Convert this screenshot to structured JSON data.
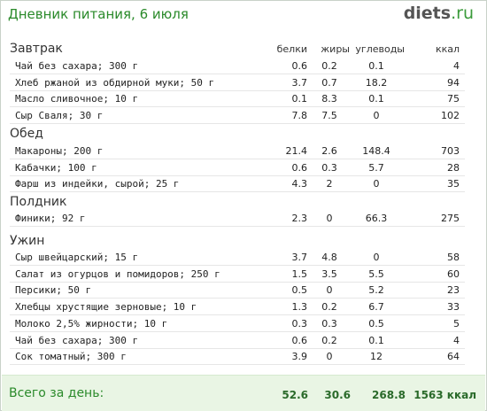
{
  "title": "Дневник питания, 6 июля",
  "logo": {
    "name": "diets",
    "tld": ".ru"
  },
  "columns": [
    "белки",
    "жиры",
    "углеводы",
    "ккал"
  ],
  "sections": [
    {
      "name": "Завтрак",
      "items": [
        [
          "Чай без сахара; 300 г",
          "0.6",
          "0.2",
          "0.1",
          "4"
        ],
        [
          "Хлеб ржаной из обдирной муки; 50 г",
          "3.7",
          "0.7",
          "18.2",
          "94"
        ],
        [
          "Масло сливочное; 10 г",
          "0.1",
          "8.3",
          "0.1",
          "75"
        ],
        [
          "Сыр Сваля; 30 г",
          "7.8",
          "7.5",
          "0",
          "102"
        ]
      ]
    },
    {
      "name": "Обед",
      "items": [
        [
          "Макароны; 200 г",
          "21.4",
          "2.6",
          "148.4",
          "703"
        ],
        [
          "Кабачки; 100 г",
          "0.6",
          "0.3",
          "5.7",
          "28"
        ],
        [
          "Фарш из индейки, сырой; 25 г",
          "4.3",
          "2",
          "0",
          "35"
        ]
      ]
    },
    {
      "name": "Полдник",
      "items": [
        [
          "Финики; 92 г",
          "2.3",
          "0",
          "66.3",
          "275"
        ]
      ]
    },
    {
      "name": "Ужин",
      "items": [
        [
          "Сыр швейцарский; 15 г",
          "3.7",
          "4.8",
          "0",
          "58"
        ],
        [
          "Салат из огурцов и помидоров; 250 г",
          "1.5",
          "3.5",
          "5.5",
          "60"
        ],
        [
          "Персики; 50 г",
          "0.5",
          "0",
          "5.2",
          "23"
        ],
        [
          "Хлебцы хрустящие зерновые; 10 г",
          "1.3",
          "0.2",
          "6.7",
          "33"
        ],
        [
          "Молоко 2,5% жирности; 10 г",
          "0.3",
          "0.3",
          "0.5",
          "5"
        ],
        [
          "Чай без сахара; 300 г",
          "0.6",
          "0.2",
          "0.1",
          "4"
        ],
        [
          "Сок томатный; 300 г",
          "3.9",
          "0",
          "12",
          "64"
        ]
      ]
    }
  ],
  "totals": {
    "label": "Всего за день:",
    "values": [
      "52.6",
      "30.6",
      "268.8",
      "1563 ккал"
    ]
  }
}
